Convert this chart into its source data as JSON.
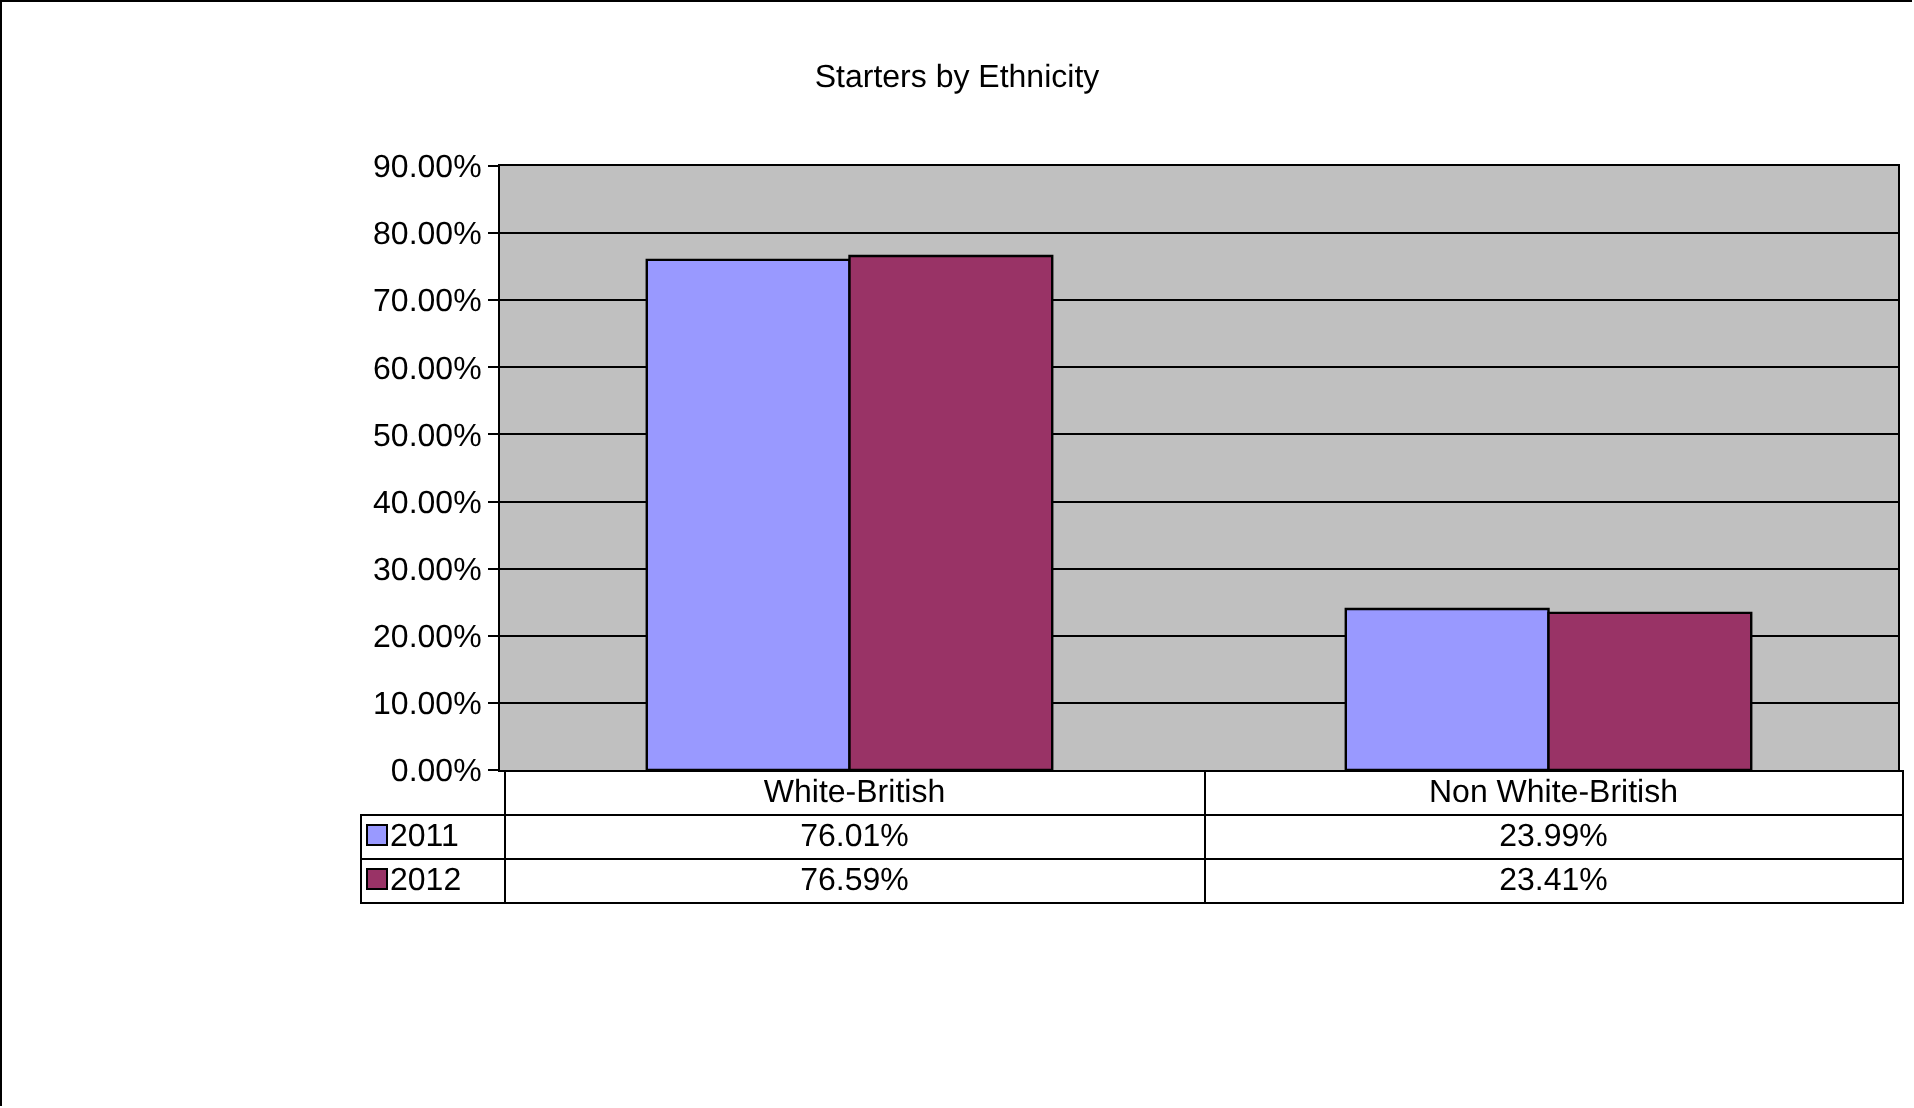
{
  "chart_data": {
    "type": "bar",
    "title": "Starters by Ethnicity",
    "categories": [
      "White-British",
      "Non White-British"
    ],
    "series": [
      {
        "name": "2011",
        "color": "#9999ff",
        "values": [
          76.01,
          23.99
        ],
        "value_labels": [
          "76.01%",
          "23.99%"
        ]
      },
      {
        "name": "2012",
        "color": "#993366",
        "values": [
          76.59,
          23.41
        ],
        "value_labels": [
          "76.59%",
          "23.41%"
        ]
      }
    ],
    "ylim": [
      0,
      90
    ],
    "yticks": [
      {
        "value": 0,
        "label": "0.00%"
      },
      {
        "value": 10,
        "label": "10.00%"
      },
      {
        "value": 20,
        "label": "20.00%"
      },
      {
        "value": 30,
        "label": "30.00%"
      },
      {
        "value": 40,
        "label": "40.00%"
      },
      {
        "value": 50,
        "label": "50.00%"
      },
      {
        "value": 60,
        "label": "60.00%"
      },
      {
        "value": 70,
        "label": "70.00%"
      },
      {
        "value": 80,
        "label": "80.00%"
      },
      {
        "value": 90,
        "label": "90.00%"
      }
    ],
    "grid": "y",
    "legend": "bottom"
  }
}
